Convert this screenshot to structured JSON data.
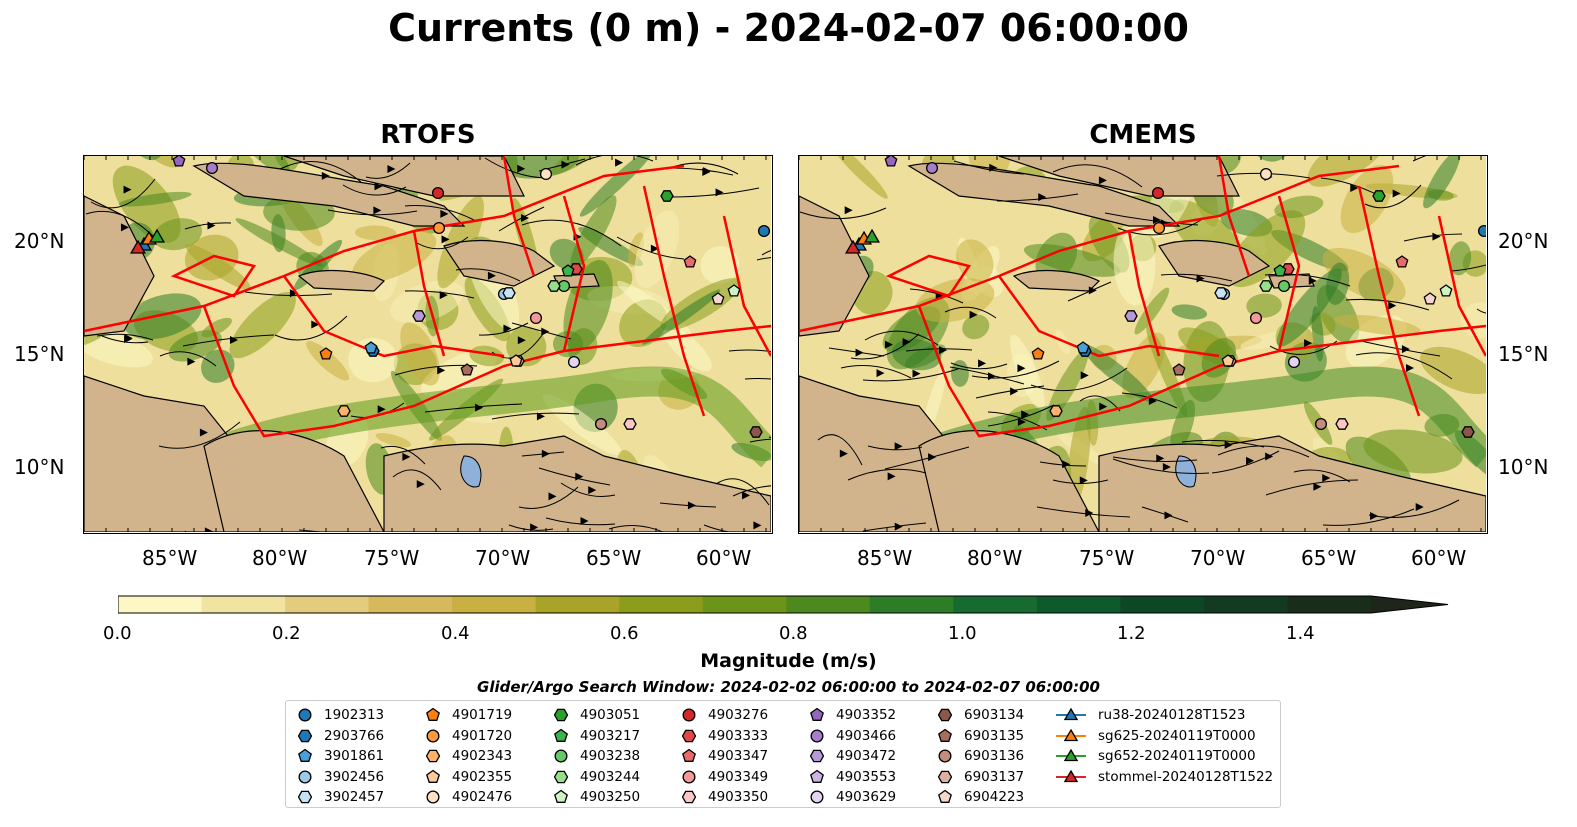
{
  "title": "Currents (0 m) - 2024-02-07 06:00:00",
  "panels": [
    {
      "title": "RTOFS"
    },
    {
      "title": "CMEMS"
    }
  ],
  "axes": {
    "lon_ticks": [
      "85°W",
      "80°W",
      "75°W",
      "70°W",
      "65°W",
      "60°W"
    ],
    "lat_ticks": [
      "20°N",
      "15°N",
      "10°N"
    ]
  },
  "colorbar": {
    "label": "Magnitude (m/s)",
    "ticks": [
      "0.0",
      "0.2",
      "0.4",
      "0.6",
      "0.8",
      "1.0",
      "1.2",
      "1.4"
    ],
    "colors": [
      "#fcf7c4",
      "#f1e3a0",
      "#e3cc7e",
      "#d5b95c",
      "#c9b042",
      "#a9a428",
      "#8b9d1a",
      "#6c9419",
      "#4d891c",
      "#2d7c26",
      "#176b31",
      "#0f5a2c",
      "#0d4726",
      "#133a22",
      "#1a2d1b",
      "#1e251a"
    ]
  },
  "search_window": "Glider/Argo Search Window: 2024-02-02 06:00:00 to 2024-02-07 06:00:00",
  "legend": [
    {
      "label": "1902313",
      "marker": "circle",
      "color": "#1f77b4"
    },
    {
      "label": "2903766",
      "marker": "hexagon",
      "color": "#1f77b4"
    },
    {
      "label": "3901861",
      "marker": "pentagon",
      "color": "#4a9fd8"
    },
    {
      "label": "3902456",
      "marker": "circle",
      "color": "#9ecae9"
    },
    {
      "label": "3902457",
      "marker": "hexagon",
      "color": "#c6e2f5"
    },
    {
      "label": "4901719",
      "marker": "pentagon",
      "color": "#ff7f0e"
    },
    {
      "label": "4901720",
      "marker": "circle",
      "color": "#fd9a3c"
    },
    {
      "label": "4902343",
      "marker": "hexagon",
      "color": "#ffb26e"
    },
    {
      "label": "4902355",
      "marker": "pentagon",
      "color": "#ffc99a"
    },
    {
      "label": "4902476",
      "marker": "circle",
      "color": "#ffe2c4"
    },
    {
      "label": "4903051",
      "marker": "hexagon",
      "color": "#2ca02c"
    },
    {
      "label": "4903217",
      "marker": "pentagon",
      "color": "#3cb44b"
    },
    {
      "label": "4903238",
      "marker": "circle",
      "color": "#67c867"
    },
    {
      "label": "4903244",
      "marker": "hexagon",
      "color": "#98df8a"
    },
    {
      "label": "4903250",
      "marker": "pentagon",
      "color": "#cdf3c2"
    },
    {
      "label": "4903276",
      "marker": "circle",
      "color": "#d62728"
    },
    {
      "label": "4903333",
      "marker": "hexagon",
      "color": "#e04848"
    },
    {
      "label": "4903347",
      "marker": "pentagon",
      "color": "#e86a6a"
    },
    {
      "label": "4903349",
      "marker": "circle",
      "color": "#f29a9a"
    },
    {
      "label": "4903350",
      "marker": "hexagon",
      "color": "#fbc6c6"
    },
    {
      "label": "4903352",
      "marker": "pentagon",
      "color": "#9467bd"
    },
    {
      "label": "4903466",
      "marker": "circle",
      "color": "#a57fcc"
    },
    {
      "label": "4903472",
      "marker": "hexagon",
      "color": "#b79ad8"
    },
    {
      "label": "4903553",
      "marker": "pentagon",
      "color": "#cbb5e5"
    },
    {
      "label": "4903629",
      "marker": "circle",
      "color": "#e3d4f2"
    },
    {
      "label": "6903134",
      "marker": "hexagon",
      "color": "#8c564b"
    },
    {
      "label": "6903135",
      "marker": "pentagon",
      "color": "#a86d5f"
    },
    {
      "label": "6903136",
      "marker": "circle",
      "color": "#c48c7c"
    },
    {
      "label": "6903137",
      "marker": "hexagon",
      "color": "#ddb0a3"
    },
    {
      "label": "6904223",
      "marker": "pentagon",
      "color": "#f4d6cc"
    },
    {
      "label": "ru38-20240128T1523",
      "marker": "triangle",
      "color": "#1f77b4"
    },
    {
      "label": "sg625-20240119T0000",
      "marker": "triangle",
      "color": "#ff7f0e"
    },
    {
      "label": "sg652-20240119T0000",
      "marker": "triangle",
      "color": "#2ca02c"
    },
    {
      "label": "stommel-20240128T1522",
      "marker": "triangle",
      "color": "#d62728"
    }
  ]
}
